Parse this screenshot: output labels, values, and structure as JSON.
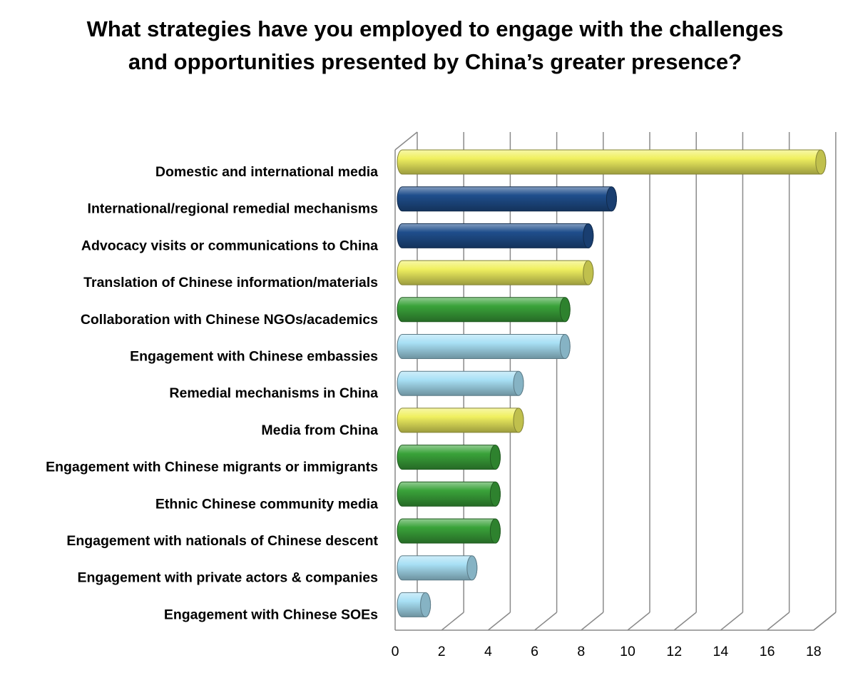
{
  "chart_data": {
    "type": "bar",
    "orientation": "horizontal",
    "style": "3d-cylinder",
    "title": "What strategies have you employed to engage with the challenges and opportunities presented by China’s greater presence?",
    "xlim": [
      0,
      18
    ],
    "xticks": [
      "0",
      "2",
      "4",
      "6",
      "8",
      "10",
      "12",
      "14",
      "16",
      "18"
    ],
    "grid": true,
    "legend": "none",
    "categories": [
      "Domestic and international media",
      "International/regional remedial mechanisms",
      "Advocacy visits or communications to China",
      "Translation of Chinese information/materials",
      "Collaboration with Chinese NGOs/academics",
      "Engagement with Chinese embassies",
      "Remedial mechanisms in China",
      "Media from China",
      "Engagement with Chinese migrants or immigrants",
      "Ethnic Chinese community media",
      "Engagement with nationals of Chinese descent",
      "Engagement with private actors & companies",
      "Engagement with Chinese SOEs"
    ],
    "values": [
      18,
      9,
      8,
      8,
      7,
      7,
      5,
      5,
      4,
      4,
      4,
      3,
      1
    ],
    "bar_colors": [
      "#f0f060",
      "#1f4e8c",
      "#1f4e8c",
      "#f0f060",
      "#3aa33a",
      "#a8e0f5",
      "#a8e0f5",
      "#f0f060",
      "#3aa33a",
      "#3aa33a",
      "#3aa33a",
      "#a8e0f5",
      "#a8e0f5"
    ]
  }
}
